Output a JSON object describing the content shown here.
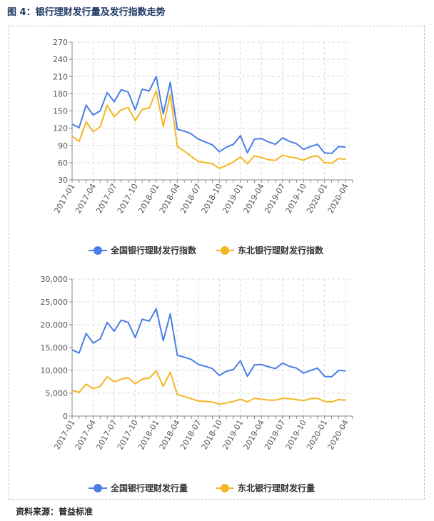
{
  "figure_title": "图 4：银行理财发行量及发行指数走势",
  "source_note": "资料来源：普益标准",
  "chart_data": [
    {
      "type": "line",
      "ylim": [
        30,
        270
      ],
      "yticks": [
        "270",
        "240",
        "210",
        "180",
        "150",
        "120",
        "90",
        "60",
        "30"
      ],
      "ytick_values": [
        270,
        240,
        210,
        180,
        150,
        120,
        90,
        60,
        30
      ],
      "x": [
        "2017-01",
        "2017-02",
        "2017-03",
        "2017-04",
        "2017-05",
        "2017-06",
        "2017-07",
        "2017-08",
        "2017-09",
        "2017-10",
        "2017-11",
        "2017-12",
        "2018-01",
        "2018-02",
        "2018-03",
        "2018-04",
        "2018-05",
        "2018-06",
        "2018-07",
        "2018-08",
        "2018-09",
        "2018-10",
        "2018-11",
        "2018-12",
        "2019-01",
        "2019-02",
        "2019-03",
        "2019-04",
        "2019-05",
        "2019-06",
        "2019-07",
        "2019-08",
        "2019-09",
        "2019-10",
        "2019-11",
        "2019-12",
        "2020-01",
        "2020-02",
        "2020-03",
        "2020-04",
        "2020-05"
      ],
      "xtick_labels": [
        "2017-01",
        "2017-04",
        "2017-07",
        "2017-10",
        "2018-01",
        "2018-04",
        "2018-07",
        "2018-10",
        "2019-01",
        "2019-04",
        "2019-07",
        "2019-10",
        "2020-01",
        "2020-04"
      ],
      "series": [
        {
          "name": "全国银行理财发行指数",
          "color": "#4a7ee6",
          "values": [
            127,
            121,
            160,
            143,
            150,
            182,
            166,
            187,
            183,
            152,
            188,
            185,
            210,
            145,
            200,
            118,
            115,
            110,
            101,
            96,
            91,
            79,
            87,
            92,
            107,
            77,
            101,
            102,
            96,
            92,
            103,
            97,
            93,
            83,
            88,
            92,
            77,
            76,
            88,
            87,
            null
          ]
        },
        {
          "name": "东北银行理财发行指数",
          "color": "#f5b623",
          "values": [
            106,
            97,
            131,
            114,
            122,
            160,
            140,
            152,
            156,
            133,
            153,
            155,
            185,
            123,
            179,
            88,
            80,
            71,
            62,
            60,
            58,
            50,
            55,
            61,
            70,
            58,
            72,
            69,
            65,
            64,
            73,
            70,
            68,
            64,
            70,
            72,
            60,
            59,
            67,
            66,
            null
          ]
        }
      ]
    },
    {
      "type": "line",
      "ylim": [
        0,
        30000
      ],
      "yticks": [
        "30,000",
        "25,000",
        "20,000",
        "15,000",
        "10,000",
        "5,000",
        "0"
      ],
      "ytick_values": [
        30000,
        25000,
        20000,
        15000,
        10000,
        5000,
        0
      ],
      "x": [
        "2017-01",
        "2017-02",
        "2017-03",
        "2017-04",
        "2017-05",
        "2017-06",
        "2017-07",
        "2017-08",
        "2017-09",
        "2017-10",
        "2017-11",
        "2017-12",
        "2018-01",
        "2018-02",
        "2018-03",
        "2018-04",
        "2018-05",
        "2018-06",
        "2018-07",
        "2018-08",
        "2018-09",
        "2018-10",
        "2018-11",
        "2018-12",
        "2019-01",
        "2019-02",
        "2019-03",
        "2019-04",
        "2019-05",
        "2019-06",
        "2019-07",
        "2019-08",
        "2019-09",
        "2019-10",
        "2019-11",
        "2019-12",
        "2020-01",
        "2020-02",
        "2020-03",
        "2020-04",
        "2020-05"
      ],
      "xtick_labels": [
        "2017-01",
        "2017-04",
        "2017-07",
        "2017-10",
        "2018-01",
        "2018-04",
        "2018-07",
        "2018-10",
        "2019-01",
        "2019-04",
        "2019-07",
        "2019-10",
        "2020-01",
        "2020-04"
      ],
      "series": [
        {
          "name": "全国银行理财发行量",
          "color": "#4a7ee6",
          "values": [
            14500,
            13800,
            18100,
            16000,
            16900,
            20500,
            18600,
            21000,
            20500,
            17200,
            21200,
            20800,
            23500,
            16500,
            22400,
            13300,
            12900,
            12400,
            11300,
            10900,
            10400,
            8900,
            9800,
            10200,
            12100,
            8700,
            11200,
            11300,
            10800,
            10400,
            11600,
            10900,
            10500,
            9400,
            10000,
            10500,
            8700,
            8600,
            10000,
            9900,
            null
          ]
        },
        {
          "name": "东北银行理财发行量",
          "color": "#f5b623",
          "values": [
            5600,
            5200,
            7000,
            6000,
            6500,
            8600,
            7500,
            8100,
            8400,
            7100,
            8100,
            8300,
            9900,
            6500,
            9600,
            4700,
            4300,
            3800,
            3300,
            3200,
            3100,
            2600,
            2900,
            3200,
            3700,
            3100,
            3900,
            3700,
            3500,
            3500,
            3900,
            3800,
            3600,
            3400,
            3800,
            3900,
            3200,
            3100,
            3600,
            3500,
            null
          ]
        }
      ]
    }
  ]
}
